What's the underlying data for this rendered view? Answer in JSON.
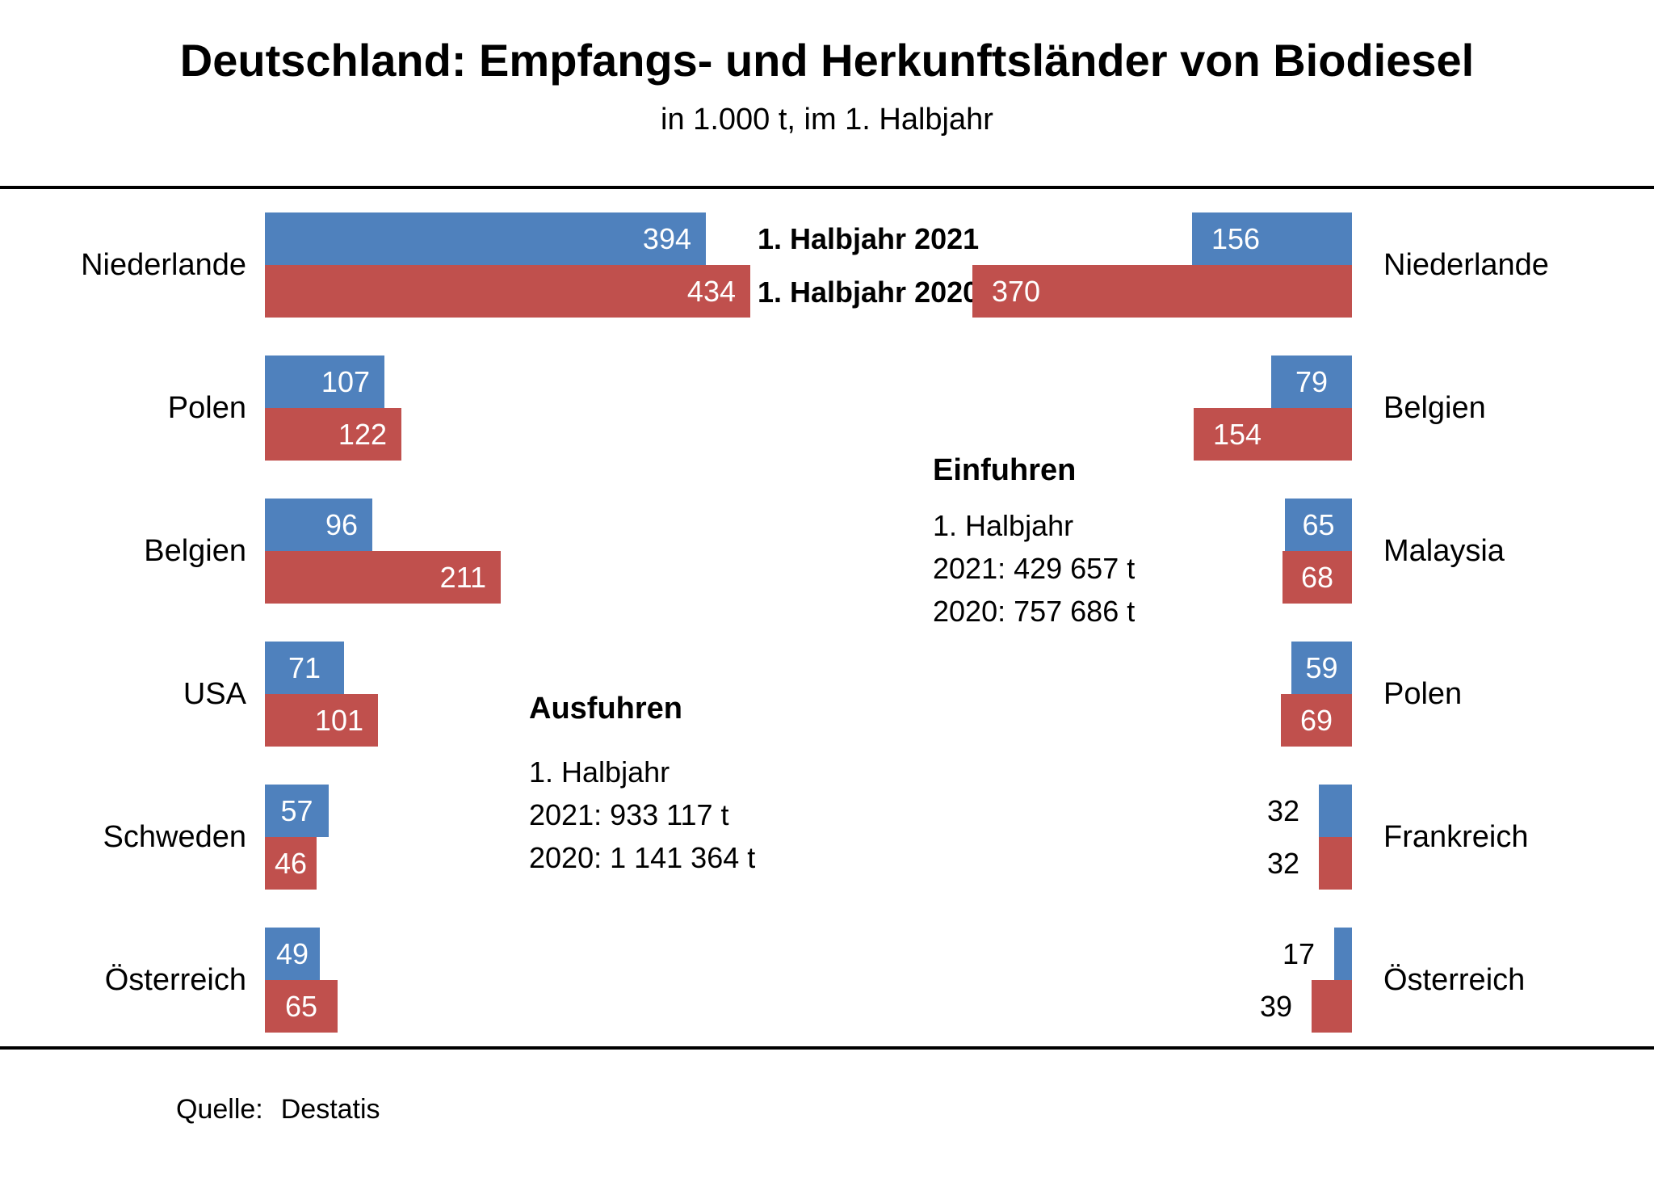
{
  "title": "Deutschland: Empfangs- und Herkunftsländer von Biodiesel",
  "subtitle": "in 1.000 t, im 1. Halbjahr",
  "legend": {
    "year2021": "1. Halbjahr 2021",
    "year2020": "1. Halbjahr 2020"
  },
  "summary_left": {
    "header": "Ausfuhren",
    "lines": [
      "1. Halbjahr",
      "2021: 933 117 t",
      "2020: 1 141 364 t"
    ]
  },
  "summary_right": {
    "header": "Einfuhren",
    "lines": [
      "1. Halbjahr",
      "2021: 429 657 t",
      "2020: 757 686 t"
    ]
  },
  "source": {
    "label": "Quelle:",
    "text": "Destatis"
  },
  "colors": {
    "bar_2021": "#4F81BD",
    "bar_2020": "#C0504D",
    "value_label_inside": "#FFFFFF",
    "value_label_outside": "#000000",
    "rule": "#000000"
  },
  "chart_data": {
    "type": "bar",
    "orientation": "horizontal",
    "unit": "1.000 t",
    "series_names": [
      "1. Halbjahr 2021",
      "1. Halbjahr 2020"
    ],
    "panels": [
      {
        "id": "left",
        "title": "Ausfuhren",
        "label_side": "left",
        "bar_direction": "left-to-right",
        "categories": [
          "Niederlande",
          "Polen",
          "Belgien",
          "USA",
          "Schweden",
          "Österreich"
        ],
        "series": [
          {
            "name": "1. Halbjahr 2021",
            "values": [
              394,
              107,
              96,
              71,
              57,
              49
            ]
          },
          {
            "name": "1. Halbjahr 2020",
            "values": [
              434,
              122,
              211,
              101,
              46,
              65
            ]
          }
        ]
      },
      {
        "id": "right",
        "title": "Einfuhren",
        "label_side": "right",
        "bar_direction": "right-to-left",
        "categories": [
          "Niederlande",
          "Belgien",
          "Malaysia",
          "Polen",
          "Frankreich",
          "Österreich"
        ],
        "series": [
          {
            "name": "1. Halbjahr 2021",
            "values": [
              156,
              79,
              65,
              59,
              32,
              17
            ]
          },
          {
            "name": "1. Halbjahr 2020",
            "values": [
              370,
              154,
              68,
              69,
              32,
              39
            ]
          }
        ]
      }
    ]
  }
}
